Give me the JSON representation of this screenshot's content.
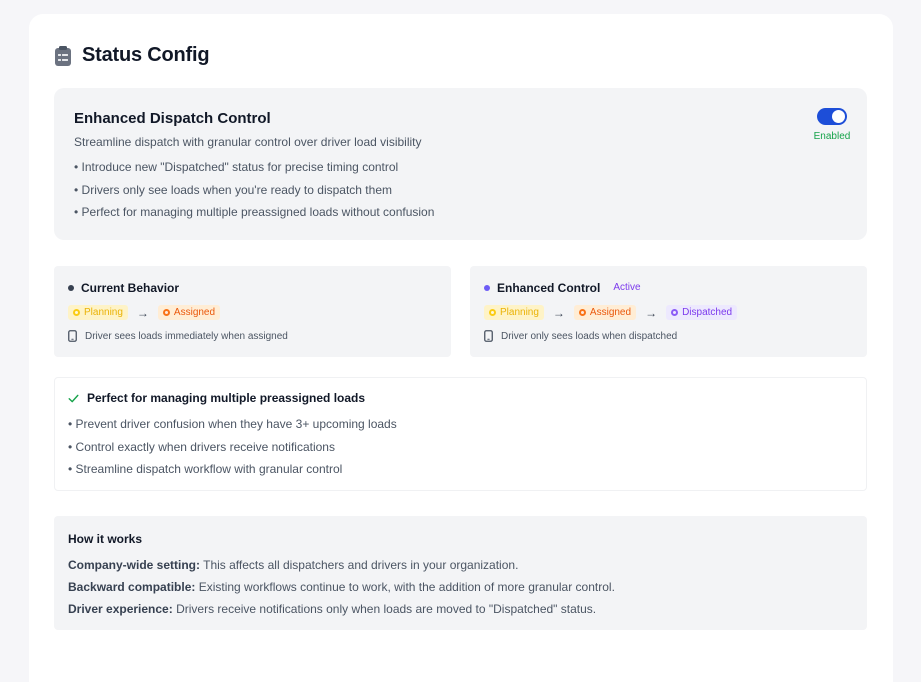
{
  "page": {
    "title": "Status Config"
  },
  "feature": {
    "title": "Enhanced Dispatch Control",
    "subtitle": "Streamline dispatch with granular control over driver load visibility",
    "bullets": [
      "• Introduce new \"Dispatched\" status for precise timing control",
      "• Drivers only see loads when you're ready to dispatch them",
      "• Perfect for managing multiple preassigned loads without confusion"
    ],
    "toggle_state": "Enabled"
  },
  "current": {
    "title": "Current Behavior",
    "statuses": [
      "Planning",
      "Assigned"
    ],
    "note": "Driver sees loads immediately when assigned"
  },
  "enhanced": {
    "title": "Enhanced Control",
    "tag": "Active",
    "statuses": [
      "Planning",
      "Assigned",
      "Dispatched"
    ],
    "note": "Driver only sees loads when dispatched"
  },
  "perfect": {
    "title": "Perfect for managing multiple preassigned loads",
    "bullets": [
      "• Prevent driver confusion when they have 3+ upcoming loads",
      "• Control exactly when drivers receive notifications",
      "• Streamline dispatch workflow with granular control"
    ]
  },
  "how": {
    "title": "How it works",
    "items": [
      {
        "label": "Company-wide setting:",
        "text": " This affects all dispatchers and drivers in your organization."
      },
      {
        "label": "Backward compatible:",
        "text": " Existing workflows continue to work, with the addition of more granular control."
      },
      {
        "label": "Driver experience:",
        "text": " Drivers receive notifications only when loads are moved to \"Dispatched\" status."
      }
    ]
  },
  "colors": {
    "accent": "#1d4ed8",
    "enabled": "#16a34a",
    "planning": "#facc15",
    "assigned": "#f97316",
    "dispatched": "#8b5cf6"
  },
  "icons": {
    "title": "clipboard-list-icon",
    "device": "smartphone-icon",
    "check": "check-icon",
    "arrow": "arrow-right-icon"
  }
}
